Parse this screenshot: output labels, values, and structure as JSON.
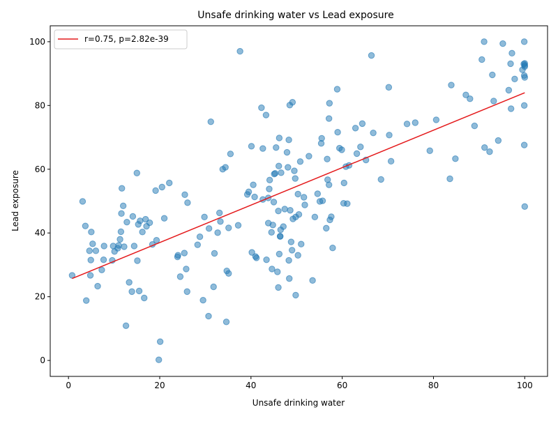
{
  "chart_data": {
    "type": "scatter",
    "title": "Unsafe drinking water vs Lead exposure",
    "xlabel": "Unsafe drinking water",
    "ylabel": "Lead exposure",
    "xlim": [
      -4,
      105
    ],
    "ylim": [
      -5,
      105
    ],
    "xticks": [
      0,
      20,
      40,
      60,
      80,
      100
    ],
    "yticks": [
      0,
      20,
      40,
      60,
      80,
      100
    ],
    "grid": false,
    "legend_position": "top-left",
    "colors": {
      "points": "#1f77b4",
      "fit_line": "#e41a1c",
      "axes": "#000000"
    },
    "series": [
      {
        "kind": "points",
        "points": [
          [
            0.8,
            26.7
          ],
          [
            3.1,
            49.9
          ],
          [
            3.7,
            42.2
          ],
          [
            3.9,
            18.8
          ],
          [
            4.6,
            34.4
          ],
          [
            4.8,
            26.7
          ],
          [
            4.9,
            31.5
          ],
          [
            5.0,
            40.3
          ],
          [
            5.3,
            36.6
          ],
          [
            6.0,
            34.4
          ],
          [
            6.4,
            23.3
          ],
          [
            7.3,
            28.4
          ],
          [
            7.7,
            31.6
          ],
          [
            7.8,
            35.9
          ],
          [
            9.6,
            31.4
          ],
          [
            9.8,
            35.9
          ],
          [
            10.1,
            34.2
          ],
          [
            10.8,
            35.2
          ],
          [
            11.0,
            36.1
          ],
          [
            11.3,
            38.0
          ],
          [
            11.5,
            40.4
          ],
          [
            11.6,
            46.1
          ],
          [
            11.7,
            54.0
          ],
          [
            12.0,
            48.5
          ],
          [
            12.2,
            35.7
          ],
          [
            12.6,
            10.9
          ],
          [
            12.8,
            43.4
          ],
          [
            13.3,
            24.5
          ],
          [
            13.9,
            21.6
          ],
          [
            14.1,
            45.2
          ],
          [
            14.4,
            35.9
          ],
          [
            15.0,
            58.8
          ],
          [
            15.1,
            31.3
          ],
          [
            15.3,
            42.7
          ],
          [
            15.5,
            21.8
          ],
          [
            15.7,
            43.8
          ],
          [
            16.2,
            40.3
          ],
          [
            16.6,
            19.6
          ],
          [
            16.9,
            44.3
          ],
          [
            17.1,
            42.1
          ],
          [
            17.8,
            43.2
          ],
          [
            18.4,
            36.4
          ],
          [
            19.1,
            53.3
          ],
          [
            19.3,
            37.7
          ],
          [
            19.8,
            0.2
          ],
          [
            20.1,
            5.9
          ],
          [
            20.5,
            54.4
          ],
          [
            21.0,
            44.6
          ],
          [
            22.1,
            55.7
          ],
          [
            23.9,
            32.5
          ],
          [
            24.0,
            33.0
          ],
          [
            24.5,
            26.3
          ],
          [
            25.4,
            33.7
          ],
          [
            25.5,
            52.0
          ],
          [
            25.8,
            28.7
          ],
          [
            26.0,
            21.6
          ],
          [
            26.1,
            49.5
          ],
          [
            28.3,
            36.3
          ],
          [
            28.8,
            38.8
          ],
          [
            29.5,
            18.9
          ],
          [
            29.8,
            45.0
          ],
          [
            30.7,
            13.9
          ],
          [
            30.8,
            41.4
          ],
          [
            31.2,
            74.9
          ],
          [
            31.8,
            23.1
          ],
          [
            32.0,
            33.6
          ],
          [
            32.7,
            40.1
          ],
          [
            33.1,
            46.3
          ],
          [
            33.3,
            43.6
          ],
          [
            33.8,
            60.0
          ],
          [
            34.4,
            60.6
          ],
          [
            34.6,
            12.1
          ],
          [
            34.7,
            28.1
          ],
          [
            35.1,
            27.3
          ],
          [
            35.1,
            41.6
          ],
          [
            35.5,
            64.8
          ],
          [
            37.2,
            42.4
          ],
          [
            37.6,
            97.0
          ],
          [
            39.2,
            52.1
          ],
          [
            39.5,
            52.9
          ],
          [
            40.1,
            67.2
          ],
          [
            40.2,
            33.9
          ],
          [
            40.5,
            55.1
          ],
          [
            40.8,
            51.3
          ],
          [
            41.0,
            32.6
          ],
          [
            41.2,
            32.2
          ],
          [
            42.3,
            79.3
          ],
          [
            42.6,
            50.5
          ],
          [
            42.6,
            66.5
          ],
          [
            43.3,
            77.0
          ],
          [
            43.4,
            31.6
          ],
          [
            43.8,
            51.0
          ],
          [
            43.8,
            43.1
          ],
          [
            44.0,
            53.8
          ],
          [
            44.1,
            56.6
          ],
          [
            44.5,
            40.2
          ],
          [
            44.6,
            28.7
          ],
          [
            44.8,
            42.5
          ],
          [
            45.0,
            49.7
          ],
          [
            45.1,
            58.5
          ],
          [
            45.3,
            58.7
          ],
          [
            45.5,
            66.8
          ],
          [
            45.8,
            27.8
          ],
          [
            46.0,
            22.9
          ],
          [
            46.0,
            46.9
          ],
          [
            46.1,
            61.0
          ],
          [
            46.2,
            69.8
          ],
          [
            46.2,
            33.4
          ],
          [
            46.4,
            38.9
          ],
          [
            46.4,
            39.0
          ],
          [
            46.5,
            41.0
          ],
          [
            46.6,
            58.9
          ],
          [
            47.1,
            42.0
          ],
          [
            47.4,
            47.5
          ],
          [
            47.9,
            65.3
          ],
          [
            48.1,
            60.6
          ],
          [
            48.3,
            69.2
          ],
          [
            48.3,
            31.4
          ],
          [
            48.4,
            25.7
          ],
          [
            48.5,
            80.1
          ],
          [
            48.6,
            47.1
          ],
          [
            48.8,
            37.2
          ],
          [
            49.0,
            34.6
          ],
          [
            49.1,
            81.0
          ],
          [
            49.2,
            44.4
          ],
          [
            49.5,
            59.5
          ],
          [
            49.7,
            57.1
          ],
          [
            49.8,
            20.5
          ],
          [
            49.8,
            45.0
          ],
          [
            50.3,
            33.0
          ],
          [
            50.3,
            52.2
          ],
          [
            50.5,
            45.8
          ],
          [
            50.8,
            62.4
          ],
          [
            51.0,
            36.5
          ],
          [
            51.6,
            51.2
          ],
          [
            51.8,
            48.8
          ],
          [
            52.7,
            64.1
          ],
          [
            53.5,
            25.1
          ],
          [
            54.0,
            45.0
          ],
          [
            54.6,
            52.3
          ],
          [
            55.1,
            49.9
          ],
          [
            55.4,
            68.1
          ],
          [
            55.5,
            69.7
          ],
          [
            55.7,
            50.1
          ],
          [
            56.5,
            41.5
          ],
          [
            56.7,
            63.2
          ],
          [
            56.8,
            56.7
          ],
          [
            57.1,
            55.1
          ],
          [
            57.1,
            75.9
          ],
          [
            57.2,
            80.7
          ],
          [
            57.3,
            44.1
          ],
          [
            57.6,
            45.1
          ],
          [
            57.9,
            35.3
          ],
          [
            58.9,
            85.1
          ],
          [
            59.0,
            71.6
          ],
          [
            59.4,
            66.6
          ],
          [
            59.9,
            66.1
          ],
          [
            60.3,
            49.3
          ],
          [
            60.4,
            55.7
          ],
          [
            60.8,
            60.8
          ],
          [
            61.1,
            49.2
          ],
          [
            61.5,
            61.2
          ],
          [
            62.9,
            72.9
          ],
          [
            63.2,
            64.9
          ],
          [
            64.0,
            67.0
          ],
          [
            64.4,
            74.3
          ],
          [
            65.2,
            62.9
          ],
          [
            66.4,
            95.7
          ],
          [
            66.8,
            71.4
          ],
          [
            68.5,
            56.8
          ],
          [
            70.2,
            85.7
          ],
          [
            70.3,
            70.7
          ],
          [
            70.7,
            62.5
          ],
          [
            74.2,
            74.2
          ],
          [
            76.0,
            74.6
          ],
          [
            79.2,
            65.8
          ],
          [
            80.6,
            75.5
          ],
          [
            83.6,
            57.0
          ],
          [
            83.9,
            86.4
          ],
          [
            84.8,
            63.3
          ],
          [
            87.1,
            83.3
          ],
          [
            88.0,
            82.1
          ],
          [
            89.0,
            73.6
          ],
          [
            90.6,
            94.4
          ],
          [
            91.1,
            100.0
          ],
          [
            91.2,
            66.8
          ],
          [
            92.3,
            65.5
          ],
          [
            92.9,
            89.6
          ],
          [
            93.2,
            81.4
          ],
          [
            94.2,
            69.0
          ],
          [
            95.2,
            99.4
          ],
          [
            96.5,
            84.8
          ],
          [
            96.9,
            93.1
          ],
          [
            97.0,
            79.0
          ],
          [
            97.2,
            96.4
          ],
          [
            97.8,
            88.3
          ],
          [
            99.5,
            91.2
          ],
          [
            99.8,
            93.0
          ],
          [
            99.9,
            100.0
          ],
          [
            99.9,
            89.4
          ],
          [
            99.9,
            80.0
          ],
          [
            99.9,
            67.6
          ],
          [
            100.0,
            93.2
          ],
          [
            100.0,
            92.2
          ],
          [
            100.0,
            92.6
          ],
          [
            100.0,
            88.8
          ],
          [
            100.0,
            48.3
          ]
        ]
      },
      {
        "kind": "fit_line",
        "name": "r=0.75, p=2.82e-39",
        "points": [
          [
            0.8,
            25.7
          ],
          [
            100.0,
            84.0
          ]
        ]
      }
    ]
  }
}
